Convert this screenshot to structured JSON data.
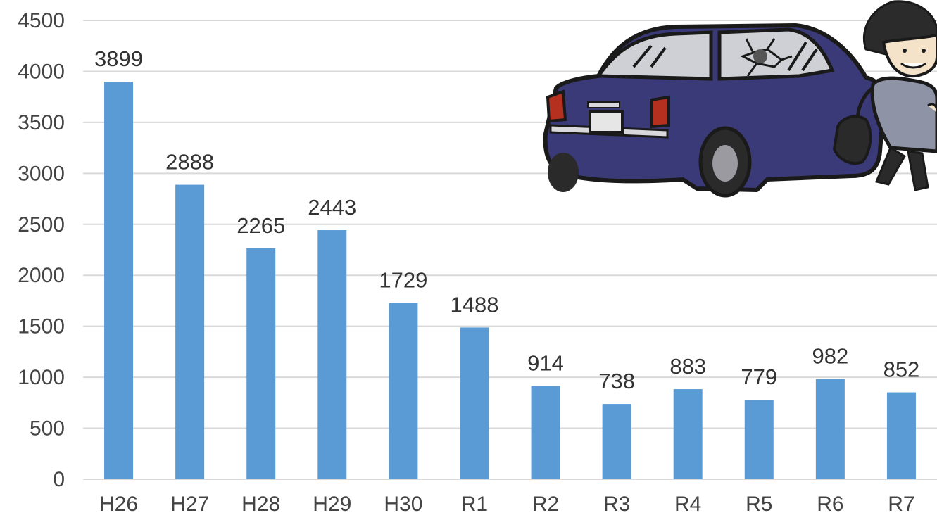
{
  "chart_data": {
    "type": "bar",
    "categories": [
      "H26",
      "H27",
      "H28",
      "H29",
      "H30",
      "R1",
      "R2",
      "R3",
      "R4",
      "R5",
      "R6",
      "R7"
    ],
    "values": [
      3899,
      2888,
      2265,
      2443,
      1729,
      1488,
      914,
      738,
      883,
      779,
      982,
      852
    ],
    "yticks": [
      "0",
      "500",
      "1000",
      "1500",
      "2000",
      "2500",
      "3000",
      "3500",
      "4000",
      "4500"
    ],
    "ylim": [
      0,
      4500
    ],
    "grid": true,
    "data_labels": true,
    "bar_color": "#5b9bd5",
    "illustration": "car-thief-illustration"
  }
}
